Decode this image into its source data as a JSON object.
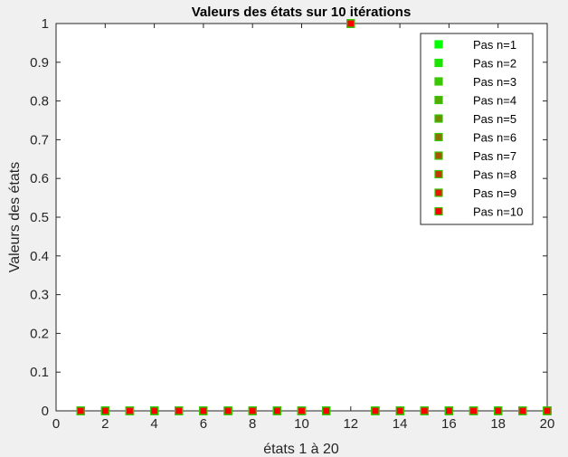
{
  "chart_data": {
    "type": "scatter",
    "title": "Valeurs des états sur 10 itérations",
    "xlabel": "états 1 à 20",
    "ylabel": "Valeurs des états",
    "xlim": [
      0,
      20
    ],
    "ylim": [
      0,
      1
    ],
    "xticks": [
      "0",
      "2",
      "4",
      "6",
      "8",
      "10",
      "12",
      "14",
      "16",
      "18",
      "20"
    ],
    "yticks": [
      "0",
      "0.1",
      "0.2",
      "0.3",
      "0.4",
      "0.5",
      "0.6",
      "0.7",
      "0.8",
      "0.9",
      "1"
    ],
    "grid": false,
    "legend_position": "top-right",
    "x": [
      1,
      2,
      3,
      4,
      5,
      6,
      7,
      8,
      9,
      10,
      11,
      12,
      13,
      14,
      15,
      16,
      17,
      18,
      19,
      20
    ],
    "series": [
      {
        "name": "Pas n=1",
        "color": "#00ff00",
        "edge": "#00ff00",
        "values": [
          0,
          0,
          0,
          0,
          0,
          0,
          0,
          0,
          0,
          0,
          0,
          1,
          0,
          0,
          0,
          0,
          0,
          0,
          0,
          0
        ]
      },
      {
        "name": "Pas n=2",
        "color": "#1ce300",
        "edge": "#1ce300",
        "values": [
          0,
          0,
          0,
          0,
          0,
          0,
          0,
          0,
          0,
          0,
          0,
          1,
          0,
          0,
          0,
          0,
          0,
          0,
          0,
          0
        ]
      },
      {
        "name": "Pas n=3",
        "color": "#38c700",
        "edge": "#38c700",
        "values": [
          0,
          0,
          0,
          0,
          0,
          0,
          0,
          0,
          0,
          0,
          0,
          1,
          0,
          0,
          0,
          0,
          0,
          0,
          0,
          0
        ]
      },
      {
        "name": "Pas n=4",
        "color": "#55aa00",
        "edge": "#2ec700",
        "values": [
          0,
          0,
          0,
          0,
          0,
          0,
          0,
          0,
          0,
          0,
          0,
          1,
          0,
          0,
          0,
          0,
          0,
          0,
          0,
          0
        ]
      },
      {
        "name": "Pas n=5",
        "color": "#718e00",
        "edge": "#2ec700",
        "values": [
          0,
          0,
          0,
          0,
          0,
          0,
          0,
          0,
          0,
          0,
          0,
          1,
          0,
          0,
          0,
          0,
          0,
          0,
          0,
          0
        ]
      },
      {
        "name": "Pas n=6",
        "color": "#8e7100",
        "edge": "#2ec700",
        "values": [
          0,
          0,
          0,
          0,
          0,
          0,
          0,
          0,
          0,
          0,
          0,
          1,
          0,
          0,
          0,
          0,
          0,
          0,
          0,
          0
        ]
      },
      {
        "name": "Pas n=7",
        "color": "#aa5500",
        "edge": "#2ec700",
        "values": [
          0,
          0,
          0,
          0,
          0,
          0,
          0,
          0,
          0,
          0,
          0,
          1,
          0,
          0,
          0,
          0,
          0,
          0,
          0,
          0
        ]
      },
      {
        "name": "Pas n=8",
        "color": "#c73800",
        "edge": "#2ec700",
        "values": [
          0,
          0,
          0,
          0,
          0,
          0,
          0,
          0,
          0,
          0,
          0,
          1,
          0,
          0,
          0,
          0,
          0,
          0,
          0,
          0
        ]
      },
      {
        "name": "Pas n=9",
        "color": "#e31c00",
        "edge": "#2ec700",
        "values": [
          0,
          0,
          0,
          0,
          0,
          0,
          0,
          0,
          0,
          0,
          0,
          1,
          0,
          0,
          0,
          0,
          0,
          0,
          0,
          0
        ]
      },
      {
        "name": "Pas n=10",
        "color": "#ff0000",
        "edge": "#2ec700",
        "values": [
          0,
          0,
          0,
          0,
          0,
          0,
          0,
          0,
          0,
          0,
          0,
          1,
          0,
          0,
          0,
          0,
          0,
          0,
          0,
          0
        ]
      }
    ]
  }
}
